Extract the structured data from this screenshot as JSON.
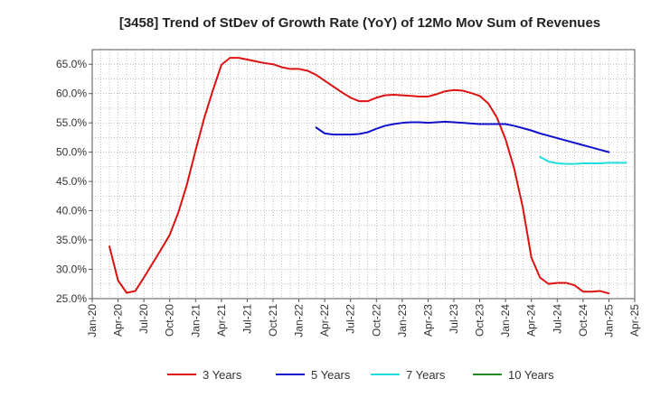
{
  "chart_data": {
    "type": "line",
    "title": "[3458]  Trend of StDev of Growth Rate (YoY) of 12Mo Mov Sum of Revenues",
    "xlabel": "",
    "ylabel": "",
    "x_ticks": [
      "Jan-20",
      "Apr-20",
      "Jul-20",
      "Oct-20",
      "Jan-21",
      "Apr-21",
      "Jul-21",
      "Oct-21",
      "Jan-22",
      "Apr-22",
      "Jul-22",
      "Oct-22",
      "Jan-23",
      "Apr-23",
      "Jul-23",
      "Oct-23",
      "Jan-24",
      "Apr-24",
      "Jul-24",
      "Oct-24",
      "Jan-25",
      "Apr-25"
    ],
    "y_ticks": [
      "25.0%",
      "30.0%",
      "35.0%",
      "40.0%",
      "45.0%",
      "50.0%",
      "55.0%",
      "60.0%",
      "65.0%"
    ],
    "y_tick_values": [
      25,
      30,
      35,
      40,
      45,
      50,
      55,
      60,
      65
    ],
    "ylim": [
      25,
      67.5
    ],
    "xlim_month_index": [
      0,
      63
    ],
    "grid": true,
    "legend_position": "bottom",
    "series": [
      {
        "name": "3 Years",
        "color": "#dd1111",
        "start_month_index": 2,
        "values": [
          33.9,
          28.1,
          26.0,
          26.3,
          28.6,
          31.0,
          33.4,
          35.9,
          39.7,
          44.5,
          50.3,
          55.8,
          60.5,
          64.9,
          66.1,
          66.1,
          65.8,
          65.5,
          65.2,
          65.0,
          64.5,
          64.2,
          64.2,
          63.9,
          63.2,
          62.2,
          61.2,
          60.2,
          59.3,
          58.7,
          58.7,
          59.3,
          59.7,
          59.8,
          59.7,
          59.6,
          59.5,
          59.5,
          59.9,
          60.4,
          60.6,
          60.5,
          60.1,
          59.6,
          58.3,
          55.9,
          52.2,
          47.2,
          40.6,
          32.0,
          28.6,
          27.5,
          27.7,
          27.7,
          27.3,
          26.2,
          26.2,
          26.3,
          25.9
        ]
      },
      {
        "name": "5 Years",
        "color": "#1111cc",
        "start_month_index": 26,
        "values": [
          54.2,
          53.2,
          53.0,
          53.0,
          53.0,
          53.1,
          53.4,
          54.0,
          54.5,
          54.8,
          55.0,
          55.1,
          55.1,
          55.0,
          55.1,
          55.2,
          55.1,
          55.0,
          54.9,
          54.8,
          54.8,
          54.8,
          54.8,
          54.5,
          54.1,
          53.7,
          53.2,
          52.8,
          52.4,
          52.0,
          51.6,
          51.2,
          50.8,
          50.4,
          50.0
        ]
      },
      {
        "name": "7 Years",
        "color": "#22dddd",
        "start_month_index": 52,
        "values": [
          49.2,
          48.4,
          48.1,
          48.0,
          48.0,
          48.1,
          48.1,
          48.1,
          48.2,
          48.2,
          48.2
        ]
      },
      {
        "name": "10 Years",
        "color": "#228822",
        "start_month_index": 0,
        "values": []
      }
    ]
  }
}
